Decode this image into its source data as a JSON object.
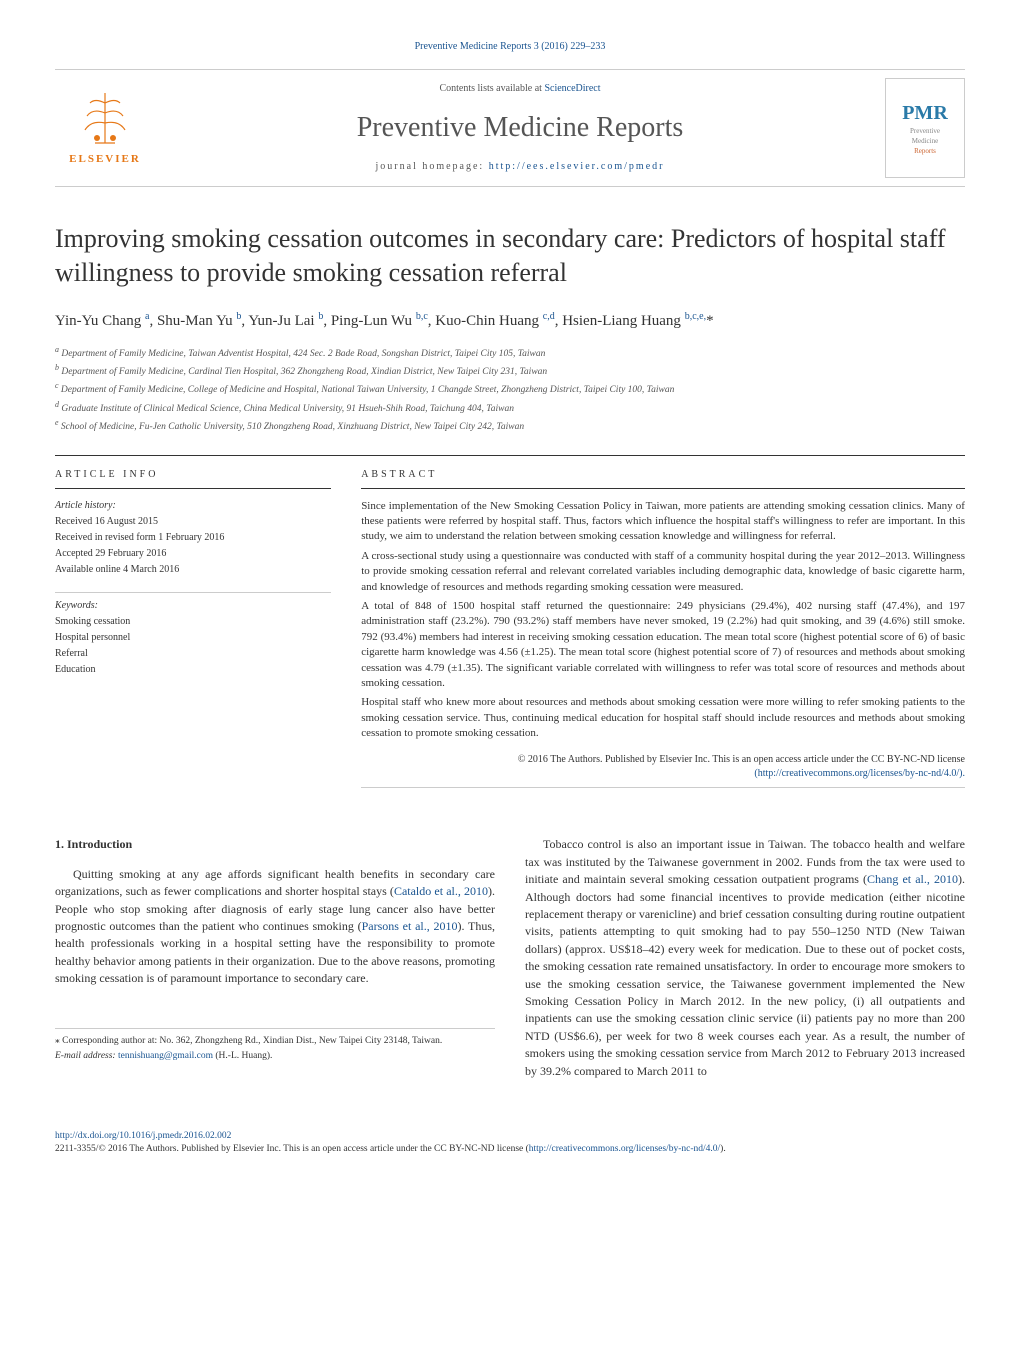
{
  "header": {
    "top_link": "Preventive Medicine Reports 3 (2016) 229–233",
    "contents_text": "Contents lists available at ",
    "contents_link": "ScienceDirect",
    "journal_name": "Preventive Medicine Reports",
    "homepage_label": "journal homepage: ",
    "homepage_url": "http://ees.elsevier.com/pmedr",
    "elsevier": "ELSEVIER",
    "cover_pmr": "PMR",
    "cover_text1": "Preventive",
    "cover_text2": "Medicine",
    "cover_text3": "Reports"
  },
  "title": "Improving smoking cessation outcomes in secondary care: Predictors of hospital staff willingness to provide smoking cessation referral",
  "authors_html": "Yin-Yu Chang <sup>a</sup>, Shu-Man Yu <sup>b</sup>, Yun-Ju Lai <sup>b</sup>, Ping-Lun Wu <sup>b,c</sup>, Kuo-Chin Huang <sup>c,d</sup>, Hsien-Liang Huang <sup>b,c,e,</sup>*",
  "affiliations": {
    "a": "Department of Family Medicine, Taiwan Adventist Hospital, 424 Sec. 2 Bade Road, Songshan District, Taipei City 105, Taiwan",
    "b": "Department of Family Medicine, Cardinal Tien Hospital, 362 Zhongzheng Road, Xindian District, New Taipei City 231, Taiwan",
    "c": "Department of Family Medicine, College of Medicine and Hospital, National Taiwan University, 1 Changde Street, Zhongzheng District, Taipei City 100, Taiwan",
    "d": "Graduate Institute of Clinical Medical Science, China Medical University, 91 Hsueh-Shih Road, Taichung 404, Taiwan",
    "e": "School of Medicine, Fu-Jen Catholic University, 510 Zhongzheng Road, Xinzhuang District, New Taipei City 242, Taiwan"
  },
  "article_info": {
    "heading": "ARTICLE INFO",
    "history_label": "Article history:",
    "history": [
      "Received 16 August 2015",
      "Received in revised form 1 February 2016",
      "Accepted 29 February 2016",
      "Available online 4 March 2016"
    ],
    "keywords_label": "Keywords:",
    "keywords": [
      "Smoking cessation",
      "Hospital personnel",
      "Referral",
      "Education"
    ]
  },
  "abstract": {
    "heading": "ABSTRACT",
    "p1": "Since implementation of the New Smoking Cessation Policy in Taiwan, more patients are attending smoking cessation clinics. Many of these patients were referred by hospital staff. Thus, factors which influence the hospital staff's willingness to refer are important. In this study, we aim to understand the relation between smoking cessation knowledge and willingness for referral.",
    "p2": "A cross-sectional study using a questionnaire was conducted with staff of a community hospital during the year 2012–2013. Willingness to provide smoking cessation referral and relevant correlated variables including demographic data, knowledge of basic cigarette harm, and knowledge of resources and methods regarding smoking cessation were measured.",
    "p3": "A total of 848 of 1500 hospital staff returned the questionnaire: 249 physicians (29.4%), 402 nursing staff (47.4%), and 197 administration staff (23.2%). 790 (93.2%) staff members have never smoked, 19 (2.2%) had quit smoking, and 39 (4.6%) still smoke. 792 (93.4%) members had interest in receiving smoking cessation education. The mean total score (highest potential score of 6) of basic cigarette harm knowledge was 4.56 (±1.25). The mean total score (highest potential score of 7) of resources and methods about smoking cessation was 4.79 (±1.35). The significant variable correlated with willingness to refer was total score of resources and methods about smoking cessation.",
    "p4": "Hospital staff who knew more about resources and methods about smoking cessation were more willing to refer smoking patients to the smoking cessation service. Thus, continuing medical education for hospital staff should include resources and methods about smoking cessation to promote smoking cessation.",
    "copyright": "© 2016 The Authors. Published by Elsevier Inc. This is an open access article under the CC BY-NC-ND license",
    "license_url": "(http://creativecommons.org/licenses/by-nc-nd/4.0/)."
  },
  "intro": {
    "heading": "1. Introduction",
    "p1_a": "Quitting smoking at any age affords significant health benefits in secondary care organizations, such as fewer complications and shorter hospital stays (",
    "p1_link1": "Cataldo et al., 2010",
    "p1_b": "). People who stop smoking after diagnosis of early stage lung cancer also have better prognostic outcomes than the patient who continues smoking (",
    "p1_link2": "Parsons et al., 2010",
    "p1_c": "). Thus, health professionals working in a hospital setting have the responsibility to promote healthy behavior among patients in their organization. Due to the above reasons, promoting smoking cessation is of paramount importance to secondary care.",
    "p2_a": "Tobacco control is also an important issue in Taiwan. The tobacco health and welfare tax was instituted by the Taiwanese government in 2002. Funds from the tax were used to initiate and maintain several smoking cessation outpatient programs (",
    "p2_link1": "Chang et al., 2010",
    "p2_b": "). Although doctors had some financial incentives to provide medication (either nicotine replacement therapy or varenicline) and brief cessation consulting during routine outpatient visits, patients attempting to quit smoking had to pay 550–1250 NTD (New Taiwan dollars) (approx. US$18–42) every week for medication. Due to these out of pocket costs, the smoking cessation rate remained unsatisfactory. In order to encourage more smokers to use the smoking cessation service, the Taiwanese government implemented the New Smoking Cessation Policy in March 2012. In the new policy, (i) all outpatients and inpatients can use the smoking cessation clinic service (ii) patients pay no more than 200 NTD (US$6.6), per week for two 8 week courses each year. As a result, the number of smokers using the smoking cessation service from March 2012 to February 2013 increased by 39.2% compared to March 2011 to"
  },
  "footnote": {
    "corr": "⁎ Corresponding author at: No. 362, Zhongzheng Rd., Xindian Dist., New Taipei City 23148, Taiwan.",
    "email_label": "E-mail address: ",
    "email": "tennishuang@gmail.com",
    "email_suffix": " (H.-L. Huang)."
  },
  "doi": {
    "url": "http://dx.doi.org/10.1016/j.pmedr.2016.02.002",
    "copyright": "2211-3355/© 2016 The Authors. Published by Elsevier Inc. This is an open access article under the CC BY-NC-ND license (",
    "license_url": "http://creativecommons.org/licenses/by-nc-nd/4.0/",
    "suffix": ")."
  }
}
